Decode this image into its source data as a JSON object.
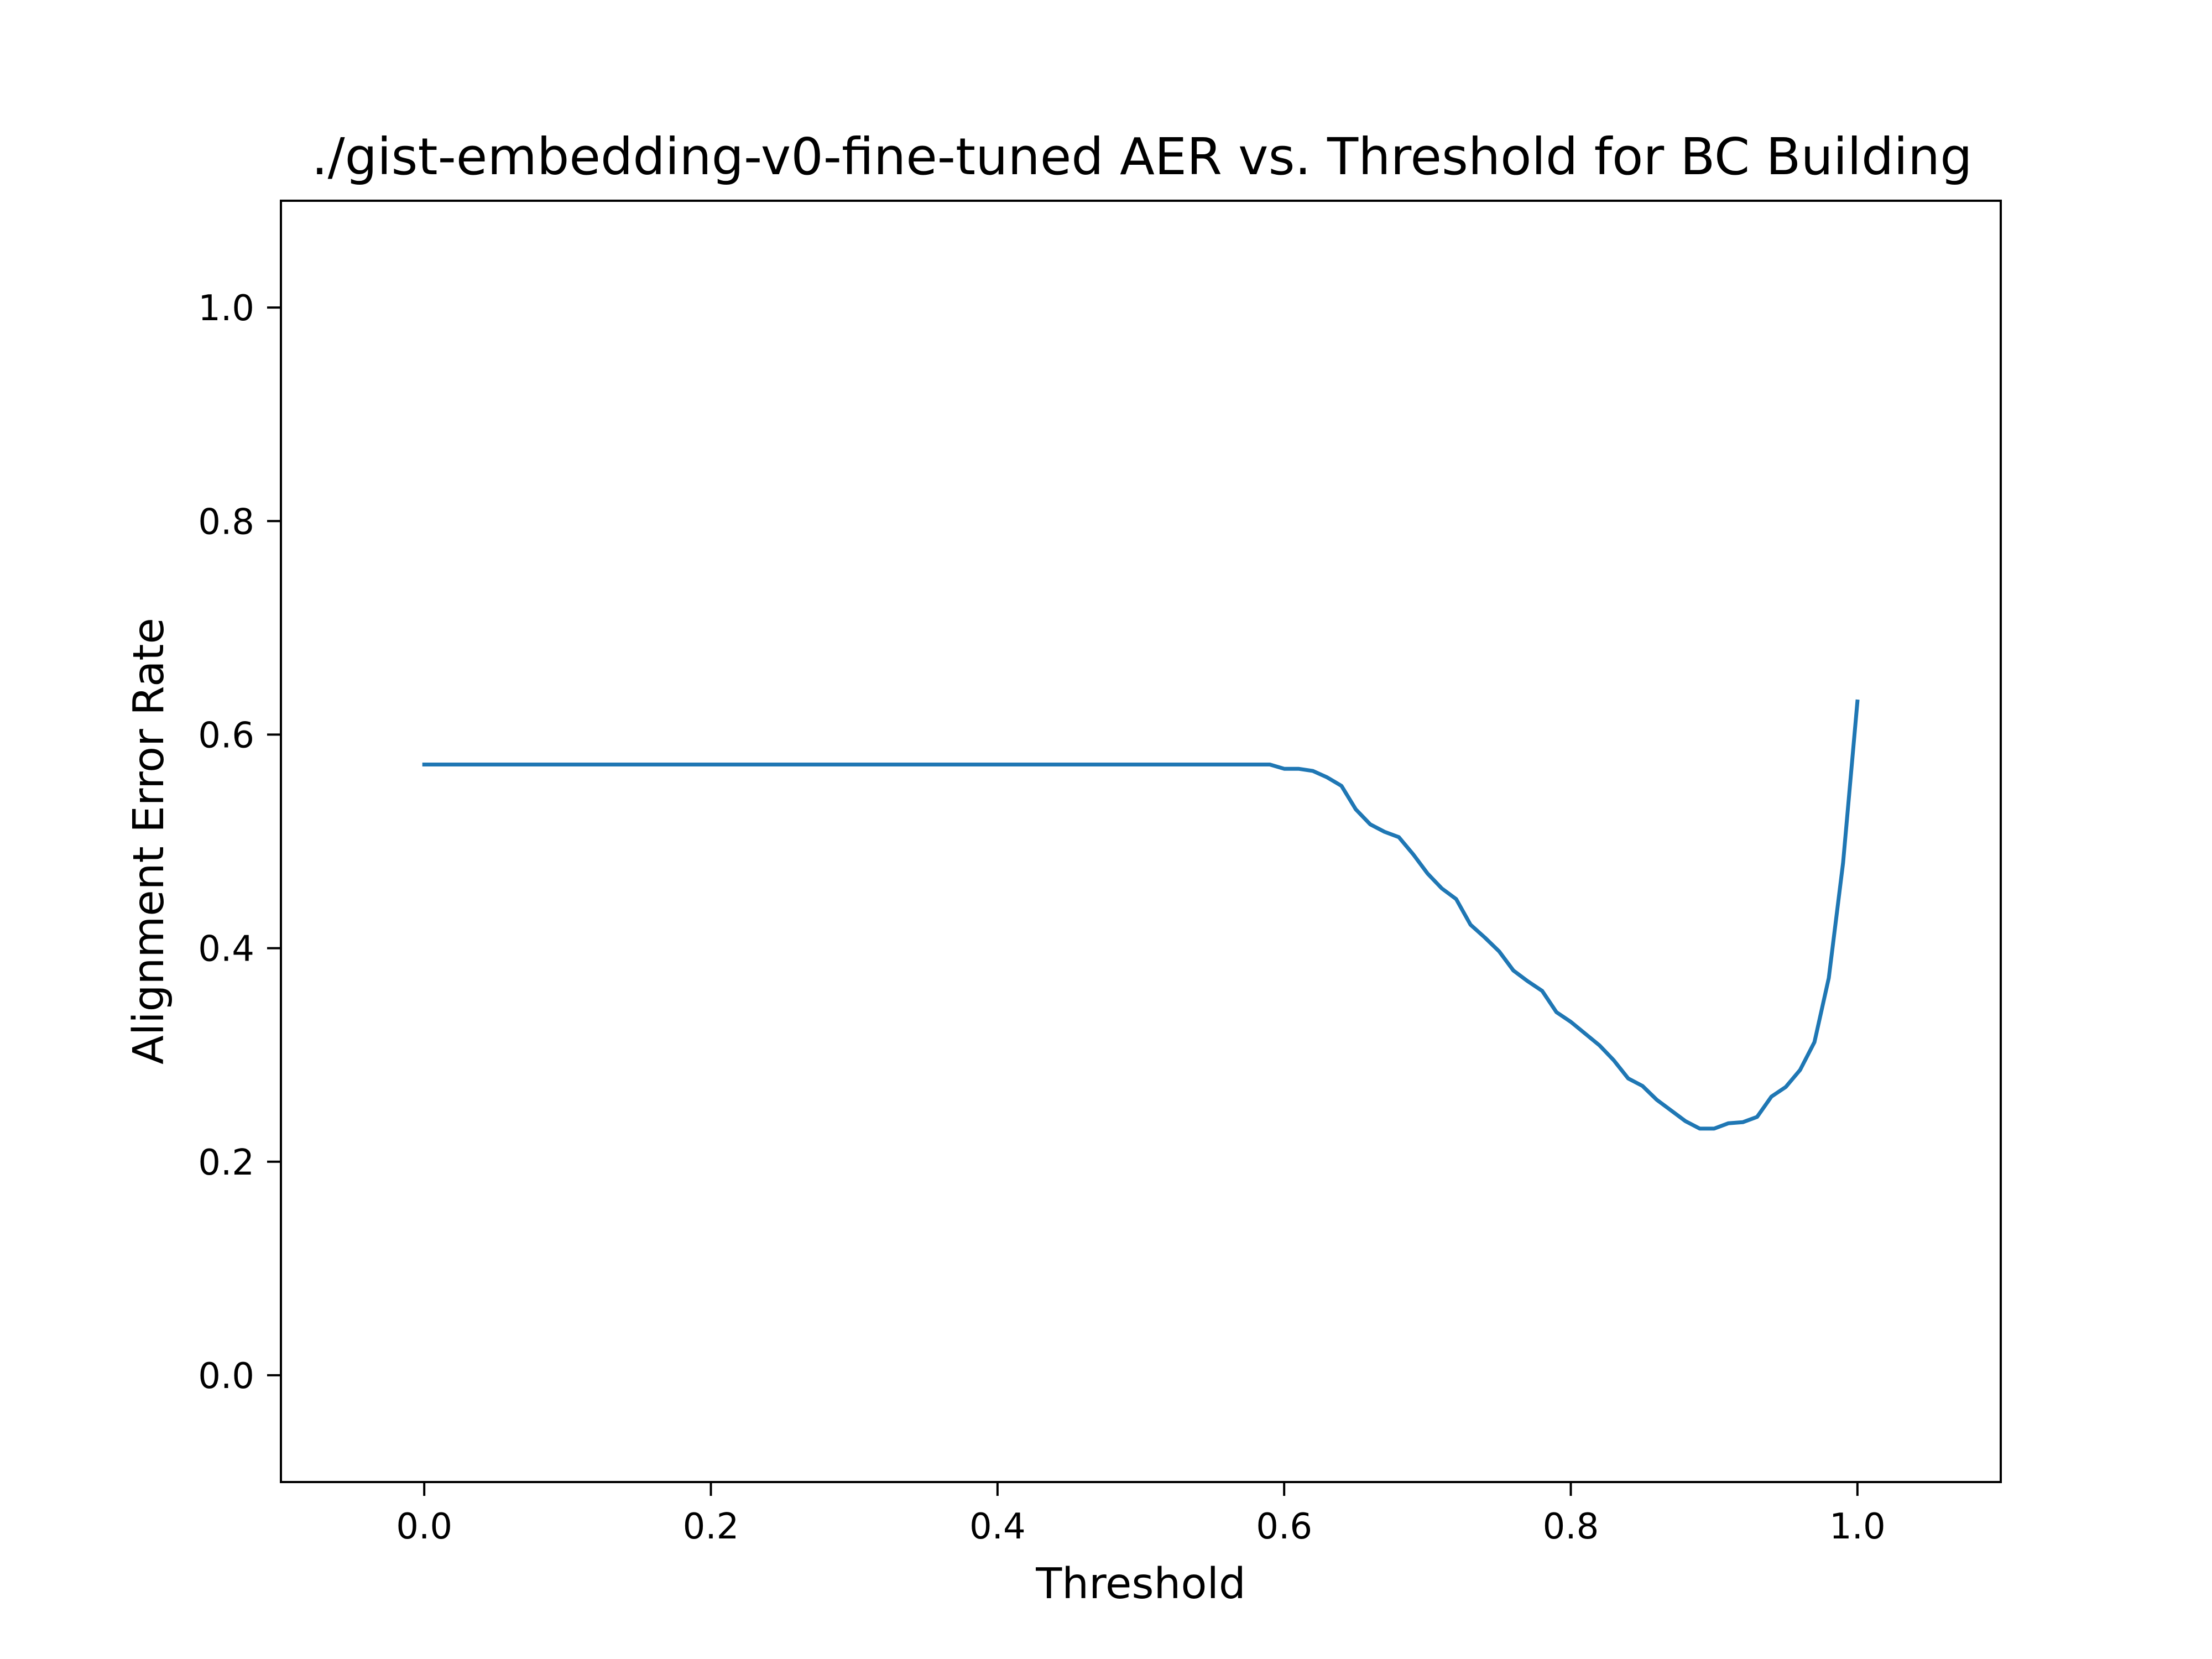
{
  "chart_data": {
    "type": "line",
    "title": "./gist-embedding-v0-fine-tuned AER vs. Threshold for BC Building",
    "xlabel": "Threshold",
    "ylabel": "Alignment Error Rate",
    "xlim": [
      -0.1,
      1.1
    ],
    "ylim": [
      -0.1,
      1.1
    ],
    "xticks": [
      0.0,
      0.2,
      0.4,
      0.6,
      0.8,
      1.0
    ],
    "xtick_labels": [
      "0.0",
      "0.2",
      "0.4",
      "0.6",
      "0.8",
      "1.0"
    ],
    "yticks": [
      0.0,
      0.2,
      0.4,
      0.6,
      0.8,
      1.0
    ],
    "ytick_labels": [
      "0.0",
      "0.2",
      "0.4",
      "0.6",
      "0.8",
      "1.0"
    ],
    "grid": false,
    "series": [
      {
        "color": "#1f77b4",
        "x": [
          0.0,
          0.59,
          0.6,
          0.61,
          0.62,
          0.63,
          0.64,
          0.65,
          0.66,
          0.67,
          0.68,
          0.69,
          0.7,
          0.71,
          0.72,
          0.73,
          0.74,
          0.75,
          0.76,
          0.77,
          0.78,
          0.79,
          0.8,
          0.81,
          0.82,
          0.83,
          0.84,
          0.85,
          0.86,
          0.87,
          0.88,
          0.89,
          0.9,
          0.91,
          0.92,
          0.93,
          0.94,
          0.95,
          0.96,
          0.97,
          0.98,
          0.99,
          1.0
        ],
        "y": [
          0.572,
          0.572,
          0.568,
          0.568,
          0.566,
          0.56,
          0.552,
          0.53,
          0.516,
          0.509,
          0.504,
          0.488,
          0.47,
          0.456,
          0.446,
          0.422,
          0.41,
          0.397,
          0.379,
          0.369,
          0.36,
          0.34,
          0.331,
          0.32,
          0.309,
          0.295,
          0.278,
          0.271,
          0.258,
          0.248,
          0.238,
          0.231,
          0.231,
          0.236,
          0.237,
          0.242,
          0.261,
          0.27,
          0.286,
          0.312,
          0.372,
          0.48,
          0.631
        ]
      }
    ]
  }
}
